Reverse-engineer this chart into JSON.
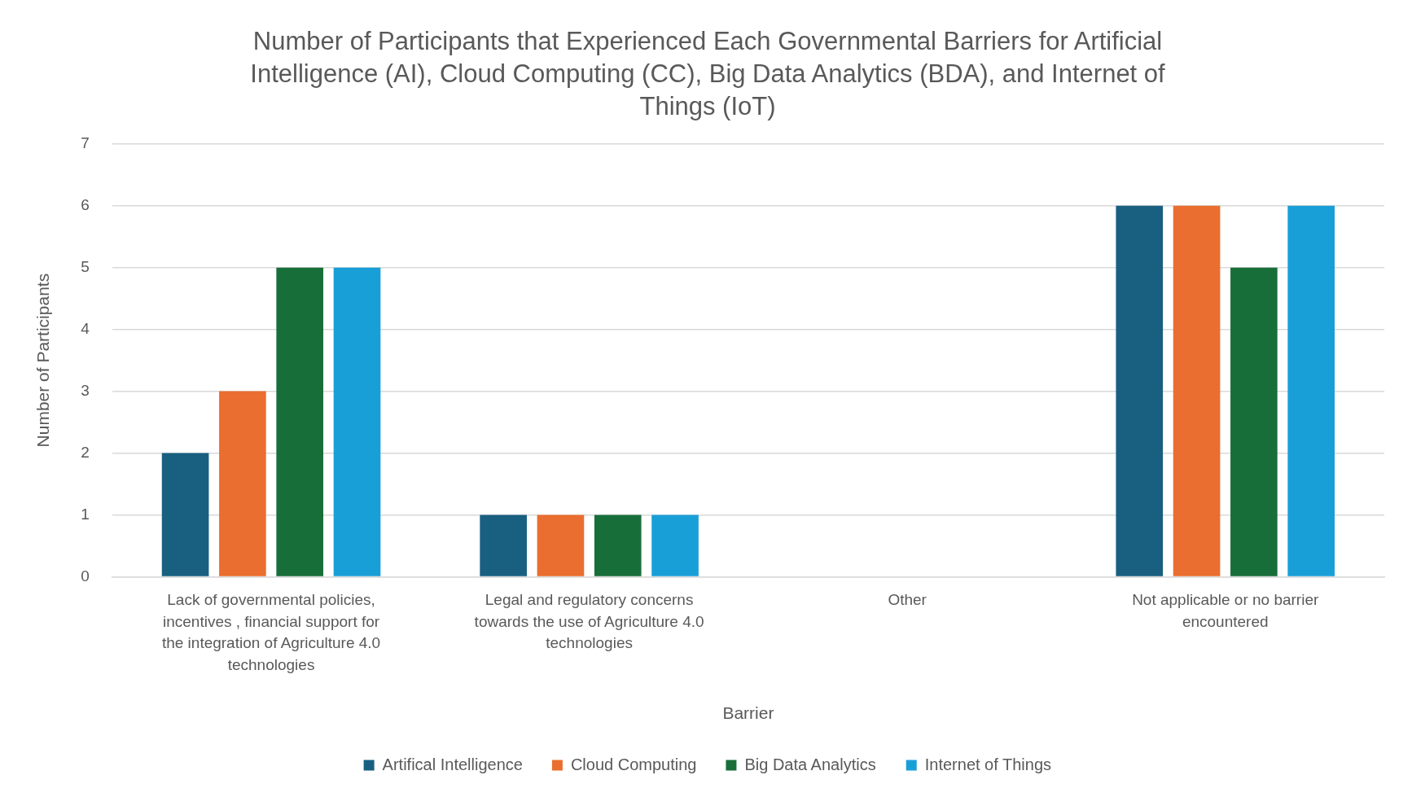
{
  "chart_data": {
    "type": "bar",
    "title": "Number of Participants that Experienced Each Governmental Barriers for Artificial Intelligence (AI), Cloud Computing (CC), Big Data Analytics (BDA), and Internet of Things (IoT)",
    "xlabel": "Barrier",
    "ylabel": "Number of Participants",
    "categories": [
      "Lack of governmental policies, incentives , financial support for the integration of Agriculture 4.0 technologies",
      "Legal and regulatory concerns towards the use of Agriculture 4.0 technologies",
      "Other",
      "Not applicable or no barrier encountered"
    ],
    "series": [
      {
        "name": "Artifical Intelligence",
        "color": "#195f80",
        "values": [
          2,
          1,
          0,
          6
        ]
      },
      {
        "name": "Cloud Computing",
        "color": "#ea6e2f",
        "values": [
          3,
          1,
          0,
          6
        ]
      },
      {
        "name": "Big Data Analytics",
        "color": "#186e39",
        "values": [
          5,
          1,
          0,
          5
        ]
      },
      {
        "name": "Internet of Things",
        "color": "#199fd8",
        "values": [
          5,
          1,
          0,
          6
        ]
      }
    ],
    "ylim": [
      0,
      7
    ],
    "yticks": [
      0,
      1,
      2,
      3,
      4,
      5,
      6,
      7
    ],
    "grid": "y",
    "legend": "bottom"
  }
}
